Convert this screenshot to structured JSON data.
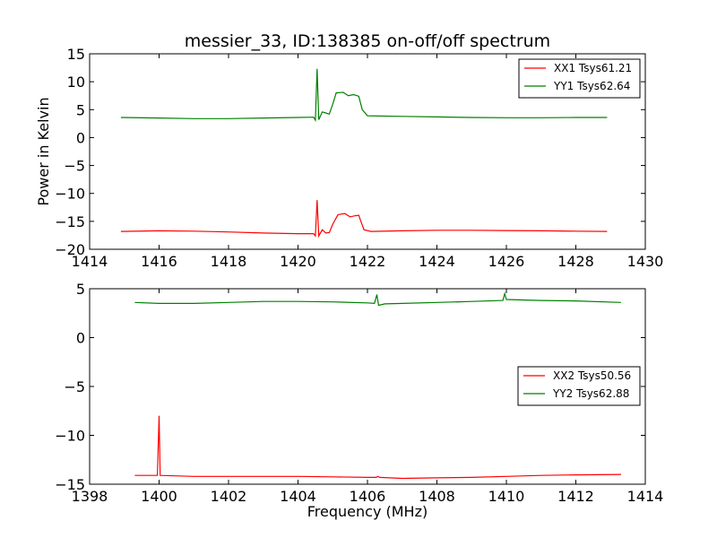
{
  "chart_data": [
    {
      "type": "line",
      "title": "messier_33, ID:138385 on-off/off spectrum",
      "xlabel": "",
      "ylabel": "Power in Kelvin",
      "xlim": [
        1414,
        1430
      ],
      "ylim": [
        -20,
        15
      ],
      "xticks": [
        1414,
        1416,
        1418,
        1420,
        1422,
        1424,
        1426,
        1428,
        1430
      ],
      "yticks": [
        -20,
        -15,
        -10,
        -5,
        0,
        5,
        10,
        15
      ],
      "xtick_labels": [
        "1414",
        "1416",
        "1418",
        "1420",
        "1422",
        "1424",
        "1426",
        "1428",
        "1430"
      ],
      "ytick_labels": [
        "−20",
        "−15",
        "−10",
        "−5",
        "0",
        "5",
        "10",
        "15"
      ],
      "grid": false,
      "legend_position": "top-right",
      "series": [
        {
          "name": "XX1 Tsys61.21",
          "color": "#ff0000",
          "points": [
            [
              1414.9,
              -16.8
            ],
            [
              1416.0,
              -16.7
            ],
            [
              1417.0,
              -16.75
            ],
            [
              1418.0,
              -16.9
            ],
            [
              1419.0,
              -17.1
            ],
            [
              1420.0,
              -17.2
            ],
            [
              1420.45,
              -17.2
            ],
            [
              1420.5,
              -17.6
            ],
            [
              1420.55,
              -11.2
            ],
            [
              1420.6,
              -17.6
            ],
            [
              1420.7,
              -16.5
            ],
            [
              1420.8,
              -17.1
            ],
            [
              1420.9,
              -17.0
            ],
            [
              1421.0,
              -15.5
            ],
            [
              1421.15,
              -13.8
            ],
            [
              1421.35,
              -13.6
            ],
            [
              1421.5,
              -14.2
            ],
            [
              1421.65,
              -14.0
            ],
            [
              1421.75,
              -13.9
            ],
            [
              1421.8,
              -14.8
            ],
            [
              1421.9,
              -16.5
            ],
            [
              1422.1,
              -16.8
            ],
            [
              1423.0,
              -16.7
            ],
            [
              1424.0,
              -16.6
            ],
            [
              1425.0,
              -16.6
            ],
            [
              1426.0,
              -16.65
            ],
            [
              1427.0,
              -16.7
            ],
            [
              1428.0,
              -16.75
            ],
            [
              1428.9,
              -16.8
            ]
          ]
        },
        {
          "name": "YY1 Tsys62.64",
          "color": "#008000",
          "points": [
            [
              1414.9,
              3.6
            ],
            [
              1416.0,
              3.5
            ],
            [
              1417.0,
              3.4
            ],
            [
              1418.0,
              3.4
            ],
            [
              1419.0,
              3.5
            ],
            [
              1420.0,
              3.6
            ],
            [
              1420.45,
              3.65
            ],
            [
              1420.5,
              3.1
            ],
            [
              1420.55,
              12.3
            ],
            [
              1420.6,
              3.2
            ],
            [
              1420.7,
              4.6
            ],
            [
              1420.8,
              4.4
            ],
            [
              1420.9,
              4.2
            ],
            [
              1421.0,
              6.0
            ],
            [
              1421.1,
              8.0
            ],
            [
              1421.3,
              8.1
            ],
            [
              1421.45,
              7.5
            ],
            [
              1421.6,
              7.7
            ],
            [
              1421.75,
              7.4
            ],
            [
              1421.85,
              5.0
            ],
            [
              1422.0,
              3.9
            ],
            [
              1423.0,
              3.8
            ],
            [
              1424.0,
              3.7
            ],
            [
              1425.0,
              3.6
            ],
            [
              1426.0,
              3.55
            ],
            [
              1427.0,
              3.55
            ],
            [
              1428.0,
              3.6
            ],
            [
              1428.9,
              3.6
            ]
          ]
        }
      ]
    },
    {
      "type": "line",
      "title": "",
      "xlabel": "Frequency (MHz)",
      "ylabel": "",
      "xlim": [
        1398,
        1414
      ],
      "ylim": [
        -15,
        5
      ],
      "xticks": [
        1398,
        1400,
        1402,
        1404,
        1406,
        1408,
        1410,
        1412,
        1414
      ],
      "yticks": [
        -15,
        -10,
        -5,
        0,
        5
      ],
      "xtick_labels": [
        "1398",
        "1400",
        "1402",
        "1404",
        "1406",
        "1408",
        "1410",
        "1412",
        "1414"
      ],
      "ytick_labels": [
        "−15",
        "−10",
        "−5",
        "0",
        "5"
      ],
      "grid": false,
      "legend_position": "center-right",
      "series": [
        {
          "name": "XX2 Tsys50.56",
          "color": "#ff0000",
          "points": [
            [
              1399.3,
              -14.1
            ],
            [
              1399.95,
              -14.1
            ],
            [
              1400.0,
              -8.0
            ],
            [
              1400.03,
              -14.1
            ],
            [
              1401.0,
              -14.2
            ],
            [
              1402.0,
              -14.2
            ],
            [
              1403.0,
              -14.2
            ],
            [
              1404.0,
              -14.2
            ],
            [
              1405.0,
              -14.25
            ],
            [
              1406.0,
              -14.3
            ],
            [
              1406.25,
              -14.3
            ],
            [
              1406.3,
              -14.2
            ],
            [
              1406.35,
              -14.3
            ],
            [
              1407.0,
              -14.4
            ],
            [
              1408.0,
              -14.35
            ],
            [
              1409.0,
              -14.3
            ],
            [
              1410.0,
              -14.2
            ],
            [
              1411.0,
              -14.1
            ],
            [
              1412.0,
              -14.05
            ],
            [
              1413.3,
              -14.0
            ]
          ]
        },
        {
          "name": "YY2 Tsys62.88",
          "color": "#008000",
          "points": [
            [
              1399.3,
              3.6
            ],
            [
              1400.0,
              3.5
            ],
            [
              1401.0,
              3.5
            ],
            [
              1402.0,
              3.6
            ],
            [
              1403.0,
              3.7
            ],
            [
              1404.0,
              3.7
            ],
            [
              1405.0,
              3.65
            ],
            [
              1406.0,
              3.55
            ],
            [
              1406.2,
              3.5
            ],
            [
              1406.27,
              4.4
            ],
            [
              1406.32,
              3.3
            ],
            [
              1406.5,
              3.45
            ],
            [
              1407.0,
              3.5
            ],
            [
              1408.0,
              3.6
            ],
            [
              1409.0,
              3.7
            ],
            [
              1409.9,
              3.8
            ],
            [
              1409.95,
              4.5
            ],
            [
              1410.0,
              3.9
            ],
            [
              1411.0,
              3.8
            ],
            [
              1412.0,
              3.75
            ],
            [
              1413.3,
              3.6
            ]
          ]
        }
      ]
    }
  ]
}
